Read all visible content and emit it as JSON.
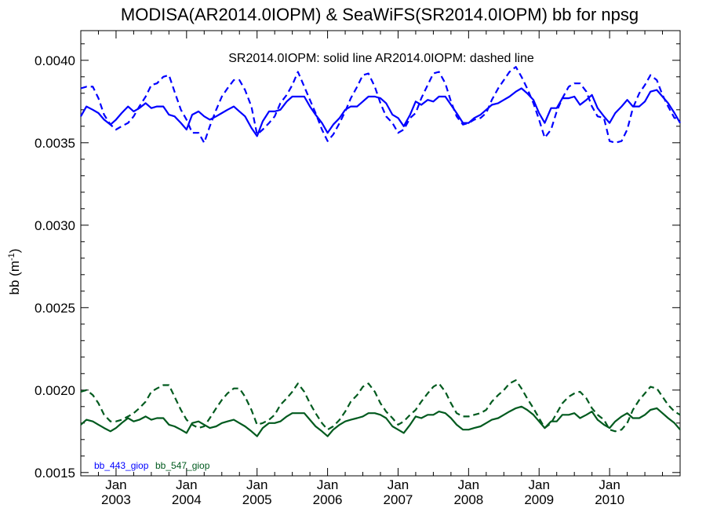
{
  "chart_data": {
    "type": "line",
    "title": "MODISA(AR2014.0IOPM) & SeaWiFS(SR2014.0IOPM)  bb for npsg",
    "ylabel": "bb (m",
    "ylabel_sup": "-1",
    "ylabel_tail": ")",
    "annotation": "SR2014.0IOPM: solid line   AR2014.0IOPM: dashed line",
    "ylim": [
      0.00148,
      0.00418
    ],
    "xlim": [
      2002.5,
      2011.0
    ],
    "yticks": [
      0.0015,
      0.002,
      0.0025,
      0.003,
      0.0035,
      0.004
    ],
    "ytick_labels": [
      "0.0015",
      "0.0020",
      "0.0025",
      "0.0030",
      "0.0035",
      "0.0040"
    ],
    "xticks": [
      {
        "x": 2003,
        "month": "Jan",
        "year": "2003"
      },
      {
        "x": 2004,
        "month": "Jan",
        "year": "2004"
      },
      {
        "x": 2005,
        "month": "Jan",
        "year": "2005"
      },
      {
        "x": 2006,
        "month": "Jan",
        "year": "2006"
      },
      {
        "x": 2007,
        "month": "Jan",
        "year": "2007"
      },
      {
        "x": 2008,
        "month": "Jan",
        "year": "2008"
      },
      {
        "x": 2009,
        "month": "Jan",
        "year": "2009"
      },
      {
        "x": 2010,
        "month": "Jan",
        "year": "2010"
      }
    ],
    "legend": [
      {
        "label": "bb_443_giop",
        "color": "#0000ff"
      },
      {
        "label": "bb_547_giop",
        "color": "#005a1e"
      }
    ],
    "series": [
      {
        "name": "bb_443_giop",
        "product": "SR2014.0IOPM",
        "style": "solid",
        "color": "#0000ff",
        "x": [
          2002.5,
          2002.58,
          2002.67,
          2002.75,
          2002.83,
          2002.92,
          2003.0,
          2003.08,
          2003.17,
          2003.25,
          2003.33,
          2003.42,
          2003.5,
          2003.58,
          2003.67,
          2003.75,
          2003.83,
          2003.92,
          2004.0,
          2004.08,
          2004.17,
          2004.25,
          2004.33,
          2004.42,
          2004.5,
          2004.58,
          2004.67,
          2004.75,
          2004.83,
          2004.92,
          2005.0,
          2005.08,
          2005.17,
          2005.25,
          2005.33,
          2005.42,
          2005.5,
          2005.58,
          2005.67,
          2005.75,
          2005.83,
          2005.92,
          2006.0,
          2006.08,
          2006.17,
          2006.25,
          2006.33,
          2006.42,
          2006.5,
          2006.58,
          2006.67,
          2006.75,
          2006.83,
          2006.92,
          2007.0,
          2007.08,
          2007.17,
          2007.25,
          2007.33,
          2007.42,
          2007.5,
          2007.58,
          2007.67,
          2007.75,
          2007.83,
          2007.92,
          2008.0,
          2008.08,
          2008.17,
          2008.25,
          2008.33,
          2008.42,
          2008.5,
          2008.58,
          2008.67,
          2008.75,
          2008.83,
          2008.92,
          2009.0,
          2009.08,
          2009.17,
          2009.25,
          2009.33,
          2009.42,
          2009.5,
          2009.58,
          2009.67,
          2009.75,
          2009.83,
          2009.92,
          2010.0,
          2010.08,
          2010.17,
          2010.25,
          2010.33,
          2010.42,
          2010.5,
          2010.58,
          2010.67,
          2010.75,
          2010.83,
          2010.92,
          2011.0
        ],
        "values": [
          0.00366,
          0.00372,
          0.0037,
          0.00368,
          0.00364,
          0.00361,
          0.00364,
          0.00368,
          0.00372,
          0.00369,
          0.00371,
          0.00374,
          0.00371,
          0.00372,
          0.00372,
          0.00367,
          0.00366,
          0.00362,
          0.00358,
          0.00367,
          0.00369,
          0.00366,
          0.00364,
          0.00366,
          0.00368,
          0.0037,
          0.00372,
          0.00369,
          0.00366,
          0.00359,
          0.00354,
          0.00363,
          0.00369,
          0.00369,
          0.0037,
          0.00375,
          0.00378,
          0.00378,
          0.00378,
          0.00372,
          0.00367,
          0.00362,
          0.00356,
          0.00361,
          0.00365,
          0.0037,
          0.00372,
          0.00372,
          0.00375,
          0.00378,
          0.00378,
          0.00377,
          0.00374,
          0.00367,
          0.00365,
          0.0036,
          0.00367,
          0.00375,
          0.00373,
          0.00376,
          0.00375,
          0.00378,
          0.00378,
          0.00373,
          0.00368,
          0.00362,
          0.00362,
          0.00365,
          0.00367,
          0.0037,
          0.00373,
          0.00374,
          0.00376,
          0.00378,
          0.00381,
          0.00383,
          0.0038,
          0.00376,
          0.00368,
          0.00362,
          0.00371,
          0.00371,
          0.00377,
          0.00377,
          0.00378,
          0.00373,
          0.00376,
          0.00379,
          0.00371,
          0.00366,
          0.00362,
          0.00368,
          0.00372,
          0.00376,
          0.00372,
          0.00372,
          0.00375,
          0.00381,
          0.00382,
          0.00378,
          0.00374,
          0.00368,
          0.00362
        ]
      },
      {
        "name": "bb_443_giop",
        "product": "AR2014.0IOPM",
        "style": "dashed",
        "color": "#0000ff",
        "x": [
          2002.5,
          2002.58,
          2002.67,
          2002.75,
          2002.83,
          2002.92,
          2003.0,
          2003.08,
          2003.17,
          2003.25,
          2003.33,
          2003.42,
          2003.5,
          2003.58,
          2003.67,
          2003.75,
          2003.83,
          2003.92,
          2004.0,
          2004.08,
          2004.17,
          2004.25,
          2004.33,
          2004.42,
          2004.5,
          2004.58,
          2004.67,
          2004.75,
          2004.83,
          2004.92,
          2005.0,
          2005.08,
          2005.17,
          2005.25,
          2005.33,
          2005.42,
          2005.5,
          2005.58,
          2005.67,
          2005.75,
          2005.83,
          2005.92,
          2006.0,
          2006.08,
          2006.17,
          2006.25,
          2006.33,
          2006.42,
          2006.5,
          2006.58,
          2006.67,
          2006.75,
          2006.83,
          2006.92,
          2007.0,
          2007.08,
          2007.17,
          2007.25,
          2007.33,
          2007.42,
          2007.5,
          2007.58,
          2007.67,
          2007.75,
          2007.83,
          2007.92,
          2008.0,
          2008.08,
          2008.17,
          2008.25,
          2008.33,
          2008.42,
          2008.5,
          2008.58,
          2008.67,
          2008.75,
          2008.83,
          2008.92,
          2009.0,
          2009.08,
          2009.17,
          2009.25,
          2009.33,
          2009.42,
          2009.5,
          2009.58,
          2009.67,
          2009.75,
          2009.83,
          2009.92,
          2010.0,
          2010.08,
          2010.17,
          2010.25,
          2010.33,
          2010.42,
          2010.5,
          2010.58,
          2010.67,
          2010.75,
          2010.83,
          2010.92,
          2011.0
        ],
        "values": [
          0.00383,
          0.00384,
          0.00384,
          0.00377,
          0.00367,
          0.00361,
          0.00358,
          0.0036,
          0.00362,
          0.00366,
          0.00372,
          0.00378,
          0.00385,
          0.00386,
          0.0039,
          0.00391,
          0.00381,
          0.0037,
          0.00364,
          0.00356,
          0.00356,
          0.0035,
          0.0036,
          0.0037,
          0.00378,
          0.00383,
          0.00388,
          0.00388,
          0.00382,
          0.00372,
          0.00355,
          0.00358,
          0.00362,
          0.00366,
          0.00374,
          0.00379,
          0.00385,
          0.00393,
          0.00384,
          0.00376,
          0.00368,
          0.00358,
          0.00351,
          0.00355,
          0.00362,
          0.00369,
          0.00377,
          0.00384,
          0.00391,
          0.00392,
          0.00384,
          0.00374,
          0.00366,
          0.00362,
          0.00356,
          0.00358,
          0.00365,
          0.00368,
          0.00377,
          0.00385,
          0.00392,
          0.00393,
          0.00386,
          0.00375,
          0.00366,
          0.00361,
          0.00362,
          0.00364,
          0.00365,
          0.00368,
          0.00376,
          0.00383,
          0.00388,
          0.00393,
          0.00396,
          0.0039,
          0.00383,
          0.00374,
          0.00364,
          0.00353,
          0.00358,
          0.00369,
          0.00377,
          0.00384,
          0.00386,
          0.00386,
          0.00381,
          0.00372,
          0.00366,
          0.00365,
          0.00351,
          0.0035,
          0.00351,
          0.00358,
          0.00371,
          0.0038,
          0.00385,
          0.00391,
          0.00388,
          0.00379,
          0.00372,
          0.00365,
          0.00365
        ]
      },
      {
        "name": "bb_547_giop",
        "product": "SR2014.0IOPM",
        "style": "solid",
        "color": "#005a1e",
        "x": [
          2002.5,
          2002.58,
          2002.67,
          2002.75,
          2002.83,
          2002.92,
          2003.0,
          2003.08,
          2003.17,
          2003.25,
          2003.33,
          2003.42,
          2003.5,
          2003.58,
          2003.67,
          2003.75,
          2003.83,
          2003.92,
          2004.0,
          2004.08,
          2004.17,
          2004.25,
          2004.33,
          2004.42,
          2004.5,
          2004.58,
          2004.67,
          2004.75,
          2004.83,
          2004.92,
          2005.0,
          2005.08,
          2005.17,
          2005.25,
          2005.33,
          2005.42,
          2005.5,
          2005.58,
          2005.67,
          2005.75,
          2005.83,
          2005.92,
          2006.0,
          2006.08,
          2006.17,
          2006.25,
          2006.33,
          2006.42,
          2006.5,
          2006.58,
          2006.67,
          2006.75,
          2006.83,
          2006.92,
          2007.0,
          2007.08,
          2007.17,
          2007.25,
          2007.33,
          2007.42,
          2007.5,
          2007.58,
          2007.67,
          2007.75,
          2007.83,
          2007.92,
          2008.0,
          2008.08,
          2008.17,
          2008.25,
          2008.33,
          2008.42,
          2008.5,
          2008.58,
          2008.67,
          2008.75,
          2008.83,
          2008.92,
          2009.0,
          2009.08,
          2009.17,
          2009.25,
          2009.33,
          2009.42,
          2009.5,
          2009.58,
          2009.67,
          2009.75,
          2009.83,
          2009.92,
          2010.0,
          2010.08,
          2010.17,
          2010.25,
          2010.33,
          2010.42,
          2010.5,
          2010.58,
          2010.67,
          2010.75,
          2010.83,
          2010.92,
          2011.0
        ],
        "values": [
          0.00179,
          0.00182,
          0.00181,
          0.00179,
          0.00177,
          0.00175,
          0.00177,
          0.0018,
          0.00183,
          0.00181,
          0.00182,
          0.00184,
          0.00182,
          0.00183,
          0.00183,
          0.00179,
          0.00178,
          0.00176,
          0.00174,
          0.0018,
          0.00181,
          0.00179,
          0.00177,
          0.00178,
          0.0018,
          0.00181,
          0.00182,
          0.0018,
          0.00178,
          0.00175,
          0.00172,
          0.00177,
          0.0018,
          0.0018,
          0.00181,
          0.00184,
          0.00186,
          0.00186,
          0.00186,
          0.00182,
          0.00178,
          0.00175,
          0.00172,
          0.00176,
          0.00179,
          0.00181,
          0.00182,
          0.00183,
          0.00184,
          0.00186,
          0.00186,
          0.00185,
          0.00183,
          0.00178,
          0.00176,
          0.00174,
          0.00179,
          0.00184,
          0.00183,
          0.00185,
          0.00185,
          0.00187,
          0.00186,
          0.00183,
          0.00179,
          0.00176,
          0.00176,
          0.00177,
          0.00178,
          0.0018,
          0.00182,
          0.00183,
          0.00185,
          0.00187,
          0.00189,
          0.0019,
          0.00188,
          0.00185,
          0.00181,
          0.00177,
          0.00181,
          0.00181,
          0.00185,
          0.00185,
          0.00186,
          0.00183,
          0.00185,
          0.00187,
          0.00182,
          0.00179,
          0.00177,
          0.00181,
          0.00184,
          0.00186,
          0.00183,
          0.00183,
          0.00185,
          0.00188,
          0.00189,
          0.00186,
          0.00183,
          0.0018,
          0.00176
        ]
      },
      {
        "name": "bb_547_giop",
        "product": "AR2014.0IOPM",
        "style": "dashed",
        "color": "#005a1e",
        "x": [
          2002.5,
          2002.58,
          2002.67,
          2002.75,
          2002.83,
          2002.92,
          2003.0,
          2003.08,
          2003.17,
          2003.25,
          2003.33,
          2003.42,
          2003.5,
          2003.58,
          2003.67,
          2003.75,
          2003.83,
          2003.92,
          2004.0,
          2004.08,
          2004.17,
          2004.25,
          2004.33,
          2004.42,
          2004.5,
          2004.58,
          2004.67,
          2004.75,
          2004.83,
          2004.92,
          2005.0,
          2005.08,
          2005.17,
          2005.25,
          2005.33,
          2005.42,
          2005.5,
          2005.58,
          2005.67,
          2005.75,
          2005.83,
          2005.92,
          2006.0,
          2006.08,
          2006.17,
          2006.25,
          2006.33,
          2006.42,
          2006.5,
          2006.58,
          2006.67,
          2006.75,
          2006.83,
          2006.92,
          2007.0,
          2007.08,
          2007.17,
          2007.25,
          2007.33,
          2007.42,
          2007.5,
          2007.58,
          2007.67,
          2007.75,
          2007.83,
          2007.92,
          2008.0,
          2008.08,
          2008.17,
          2008.25,
          2008.33,
          2008.42,
          2008.5,
          2008.58,
          2008.67,
          2008.75,
          2008.83,
          2008.92,
          2009.0,
          2009.08,
          2009.17,
          2009.25,
          2009.33,
          2009.42,
          2009.5,
          2009.58,
          2009.67,
          2009.75,
          2009.83,
          2009.92,
          2010.0,
          2010.08,
          2010.17,
          2010.25,
          2010.33,
          2010.42,
          2010.5,
          2010.58,
          2010.67,
          2010.75,
          2010.83,
          2010.92,
          2011.0
        ],
        "values": [
          0.00199,
          0.002,
          0.00197,
          0.00192,
          0.00185,
          0.00181,
          0.00181,
          0.00182,
          0.00184,
          0.00186,
          0.00189,
          0.00193,
          0.00199,
          0.00201,
          0.00203,
          0.00203,
          0.00196,
          0.00188,
          0.00182,
          0.00179,
          0.00177,
          0.00178,
          0.00183,
          0.00189,
          0.00194,
          0.00198,
          0.00201,
          0.00201,
          0.00196,
          0.00188,
          0.00179,
          0.0018,
          0.00182,
          0.00185,
          0.00191,
          0.00195,
          0.00199,
          0.00204,
          0.00199,
          0.00192,
          0.00186,
          0.0018,
          0.00176,
          0.00178,
          0.00182,
          0.00187,
          0.00193,
          0.00197,
          0.00202,
          0.00204,
          0.00199,
          0.00192,
          0.00187,
          0.00183,
          0.00179,
          0.00181,
          0.00185,
          0.00188,
          0.00193,
          0.00198,
          0.00202,
          0.00204,
          0.00199,
          0.00192,
          0.00186,
          0.00184,
          0.00184,
          0.00185,
          0.00186,
          0.00188,
          0.00193,
          0.00197,
          0.002,
          0.00204,
          0.00206,
          0.00201,
          0.00195,
          0.00189,
          0.00183,
          0.00177,
          0.0018,
          0.00186,
          0.00192,
          0.00196,
          0.00198,
          0.00199,
          0.00195,
          0.00189,
          0.00185,
          0.00182,
          0.00176,
          0.00175,
          0.00176,
          0.0018,
          0.00188,
          0.00194,
          0.00198,
          0.00202,
          0.00201,
          0.00196,
          0.00191,
          0.00187,
          0.00185
        ]
      }
    ]
  }
}
